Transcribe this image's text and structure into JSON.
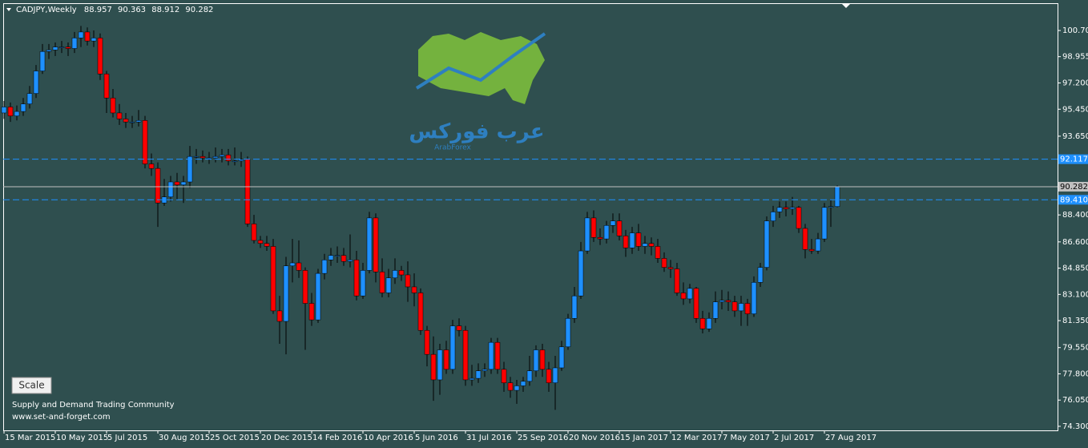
{
  "chart_data": {
    "type": "candlestick",
    "symbol": "CADJPY,Weekly",
    "up_color": "#1e90ff",
    "down_color": "#ff0000",
    "ylim": [
      74.03,
      102.52
    ],
    "yticks": [
      {
        "value": 100.7,
        "label": "100.700"
      },
      {
        "value": 98.955,
        "label": "98.955"
      },
      {
        "value": 97.2,
        "label": "97.200"
      },
      {
        "value": 95.45,
        "label": "95.450"
      },
      {
        "value": 93.65,
        "label": "93.650"
      },
      {
        "value": 88.4,
        "label": "88.400"
      },
      {
        "value": 86.6,
        "label": "86.600"
      },
      {
        "value": 84.85,
        "label": "84.850"
      },
      {
        "value": 83.1,
        "label": "83.100"
      },
      {
        "value": 81.35,
        "label": "81.350"
      },
      {
        "value": 79.55,
        "label": "79.550"
      },
      {
        "value": 77.8,
        "label": "77.800"
      },
      {
        "value": 76.05,
        "label": "76.050"
      },
      {
        "value": 74.3,
        "label": "74.300"
      }
    ],
    "hlines": [
      {
        "value": 92.117
      },
      {
        "value": 89.41,
        "label": "89.410"
      }
    ],
    "categories": [
      "15 Mar 2015",
      null,
      null,
      null,
      null,
      null,
      null,
      null,
      "10 May 2015",
      null,
      null,
      null,
      null,
      null,
      null,
      null,
      "5 Jul 2015",
      null,
      null,
      null,
      null,
      null,
      null,
      null,
      "30 Aug 2015",
      null,
      null,
      null,
      null,
      null,
      null,
      null,
      "25 Oct 2015",
      null,
      null,
      null,
      null,
      null,
      null,
      null,
      "20 Dec 2015",
      null,
      null,
      null,
      null,
      null,
      null,
      null,
      "14 Feb 2016",
      null,
      null,
      null,
      null,
      null,
      null,
      null,
      "10 Apr 2016",
      null,
      null,
      null,
      null,
      null,
      null,
      null,
      "5 Jun 2016",
      null,
      null,
      null,
      null,
      null,
      null,
      null,
      "31 Jul 2016",
      null,
      null,
      null,
      null,
      null,
      null,
      null,
      "25 Sep 2016",
      null,
      null,
      null,
      null,
      null,
      null,
      null,
      "20 Nov 2016",
      null,
      null,
      null,
      null,
      null,
      null,
      null,
      "15 Jan 2017",
      null,
      null,
      null,
      null,
      null,
      null,
      null,
      "12 Mar 2017",
      null,
      null,
      null,
      null,
      null,
      null,
      null,
      "7 May 2017",
      null,
      null,
      null,
      null,
      null,
      null,
      null,
      "2 Jul 2017",
      null,
      null,
      null,
      null,
      null,
      null,
      null,
      "27 Aug 2017",
      null,
      null
    ],
    "ohlc": [
      [
        95.2,
        96.0,
        94.8,
        95.6
      ],
      [
        95.6,
        95.9,
        94.6,
        95.0
      ],
      [
        95.0,
        95.7,
        94.7,
        95.3
      ],
      [
        95.3,
        96.2,
        95.0,
        95.8
      ],
      [
        95.8,
        97.0,
        95.5,
        96.5
      ],
      [
        96.5,
        98.4,
        96.2,
        98.0
      ],
      [
        98.0,
        99.8,
        97.8,
        99.3
      ],
      [
        99.3,
        99.8,
        98.8,
        99.4
      ],
      [
        99.4,
        99.9,
        99.0,
        99.6
      ],
      [
        99.6,
        100.0,
        99.2,
        99.6
      ],
      [
        99.6,
        99.9,
        99.0,
        99.5
      ],
      [
        99.5,
        100.6,
        99.2,
        100.2
      ],
      [
        100.2,
        101.0,
        99.6,
        100.6
      ],
      [
        100.6,
        100.9,
        99.7,
        100.0
      ],
      [
        100.0,
        100.7,
        99.6,
        100.2
      ],
      [
        100.2,
        100.5,
        97.4,
        97.8
      ],
      [
        97.8,
        98.0,
        95.2,
        96.2
      ],
      [
        96.2,
        96.8,
        94.9,
        95.2
      ],
      [
        95.2,
        95.8,
        94.4,
        94.8
      ],
      [
        94.8,
        95.2,
        94.2,
        94.6
      ],
      [
        94.6,
        95.0,
        94.2,
        94.6
      ],
      [
        94.6,
        95.4,
        94.3,
        94.7
      ],
      [
        94.7,
        95.0,
        91.5,
        91.8
      ],
      [
        91.8,
        92.5,
        91.0,
        91.5
      ],
      [
        91.5,
        91.9,
        87.6,
        89.2
      ],
      [
        89.2,
        90.8,
        89.0,
        89.6
      ],
      [
        89.6,
        91.0,
        89.3,
        90.6
      ],
      [
        90.6,
        91.2,
        89.4,
        90.4
      ],
      [
        90.4,
        91.0,
        89.2,
        90.6
      ],
      [
        90.6,
        93.0,
        90.2,
        92.3
      ],
      [
        92.3,
        92.8,
        91.8,
        92.3
      ],
      [
        92.3,
        92.7,
        91.9,
        92.2
      ],
      [
        92.2,
        92.6,
        91.8,
        92.2
      ],
      [
        92.2,
        92.9,
        91.9,
        92.3
      ],
      [
        92.3,
        92.8,
        91.9,
        92.4
      ],
      [
        92.4,
        92.8,
        91.7,
        92.0
      ],
      [
        92.0,
        92.9,
        91.7,
        92.0
      ],
      [
        92.0,
        92.6,
        91.6,
        92.1
      ],
      [
        92.1,
        92.3,
        87.6,
        87.8
      ],
      [
        87.8,
        88.4,
        86.5,
        86.7
      ],
      [
        86.7,
        87.0,
        86.2,
        86.5
      ],
      [
        86.5,
        87.0,
        86.0,
        86.3
      ],
      [
        86.3,
        86.8,
        81.8,
        82.0
      ],
      [
        82.0,
        83.0,
        79.8,
        81.3
      ],
      [
        81.3,
        85.6,
        79.1,
        85.0
      ],
      [
        85.0,
        86.8,
        83.9,
        85.2
      ],
      [
        85.2,
        86.7,
        84.2,
        84.7
      ],
      [
        84.7,
        84.9,
        79.4,
        82.5
      ],
      [
        82.5,
        83.2,
        81.0,
        81.4
      ],
      [
        81.4,
        84.8,
        81.2,
        84.5
      ],
      [
        84.5,
        85.8,
        84.1,
        85.4
      ],
      [
        85.4,
        86.2,
        85.0,
        85.7
      ],
      [
        85.7,
        86.3,
        85.2,
        85.7
      ],
      [
        85.7,
        86.2,
        85.0,
        85.3
      ],
      [
        85.3,
        87.1,
        84.9,
        85.4
      ],
      [
        85.4,
        86.0,
        82.7,
        83.0
      ],
      [
        83.0,
        85.2,
        82.8,
        84.7
      ],
      [
        84.7,
        88.6,
        84.5,
        88.2
      ],
      [
        88.2,
        88.5,
        83.9,
        84.6
      ],
      [
        84.6,
        85.5,
        82.9,
        83.2
      ],
      [
        83.2,
        84.8,
        82.9,
        84.2
      ],
      [
        84.2,
        85.5,
        83.8,
        84.7
      ],
      [
        84.7,
        85.0,
        84.0,
        84.4
      ],
      [
        84.4,
        85.3,
        82.6,
        83.6
      ],
      [
        83.6,
        84.5,
        82.3,
        83.2
      ],
      [
        83.2,
        83.5,
        80.4,
        80.7
      ],
      [
        80.7,
        81.0,
        78.3,
        79.1
      ],
      [
        79.1,
        80.3,
        76.0,
        77.4
      ],
      [
        77.4,
        79.8,
        76.4,
        79.4
      ],
      [
        79.4,
        80.0,
        77.8,
        78.1
      ],
      [
        78.1,
        81.4,
        77.8,
        81.0
      ],
      [
        81.0,
        81.5,
        80.3,
        80.7
      ],
      [
        80.7,
        81.0,
        77.0,
        77.4
      ],
      [
        77.4,
        78.4,
        77.0,
        77.5
      ],
      [
        77.5,
        78.5,
        77.2,
        78.0
      ],
      [
        78.0,
        78.5,
        77.6,
        78.1
      ],
      [
        78.1,
        80.2,
        77.8,
        79.9
      ],
      [
        79.9,
        80.2,
        77.8,
        78.1
      ],
      [
        78.1,
        78.6,
        76.6,
        77.2
      ],
      [
        77.2,
        77.6,
        76.2,
        76.7
      ],
      [
        76.7,
        77.4,
        75.8,
        77.0
      ],
      [
        77.0,
        77.6,
        76.6,
        77.3
      ],
      [
        77.3,
        79.0,
        77.0,
        78.0
      ],
      [
        78.0,
        79.7,
        77.6,
        79.4
      ],
      [
        79.4,
        79.8,
        77.6,
        78.1
      ],
      [
        78.1,
        78.6,
        76.6,
        77.2
      ],
      [
        77.2,
        79.0,
        75.4,
        78.2
      ],
      [
        78.2,
        80.0,
        78.0,
        79.6
      ],
      [
        79.6,
        81.8,
        79.4,
        81.5
      ],
      [
        81.5,
        83.6,
        81.2,
        83.0
      ],
      [
        83.0,
        86.6,
        82.8,
        86.0
      ],
      [
        86.0,
        88.6,
        85.8,
        88.2
      ],
      [
        88.2,
        88.7,
        86.6,
        86.9
      ],
      [
        86.9,
        87.5,
        86.4,
        86.8
      ],
      [
        86.8,
        88.0,
        86.5,
        87.7
      ],
      [
        87.7,
        88.5,
        87.2,
        88.0
      ],
      [
        88.0,
        88.5,
        86.7,
        87.0
      ],
      [
        87.0,
        87.4,
        85.6,
        86.2
      ],
      [
        86.2,
        87.6,
        85.8,
        87.2
      ],
      [
        87.2,
        87.8,
        86.0,
        86.3
      ],
      [
        86.3,
        87.0,
        85.8,
        86.5
      ],
      [
        86.5,
        86.9,
        85.7,
        86.3
      ],
      [
        86.3,
        86.8,
        85.2,
        85.5
      ],
      [
        85.5,
        85.9,
        84.6,
        84.9
      ],
      [
        84.9,
        85.4,
        84.2,
        84.8
      ],
      [
        84.8,
        85.2,
        83.0,
        83.2
      ],
      [
        83.2,
        83.9,
        82.4,
        82.8
      ],
      [
        82.8,
        83.8,
        82.5,
        83.5
      ],
      [
        83.5,
        83.6,
        81.2,
        81.5
      ],
      [
        81.5,
        82.0,
        80.5,
        80.8
      ],
      [
        80.8,
        81.9,
        80.6,
        81.5
      ],
      [
        81.5,
        83.3,
        81.2,
        82.6
      ],
      [
        82.6,
        83.4,
        82.1,
        82.7
      ],
      [
        82.7,
        83.3,
        82.0,
        82.6
      ],
      [
        82.6,
        83.0,
        81.6,
        82.0
      ],
      [
        82.0,
        83.0,
        81.0,
        82.5
      ],
      [
        82.5,
        82.8,
        81.0,
        81.8
      ],
      [
        81.8,
        84.3,
        81.6,
        83.9
      ],
      [
        83.9,
        85.2,
        83.6,
        84.9
      ],
      [
        84.9,
        88.3,
        84.7,
        88.0
      ],
      [
        88.0,
        89.0,
        87.6,
        88.6
      ],
      [
        88.6,
        89.3,
        88.2,
        88.9
      ],
      [
        88.9,
        89.3,
        88.3,
        88.8
      ],
      [
        88.8,
        89.6,
        88.4,
        88.9
      ],
      [
        88.9,
        89.0,
        87.2,
        87.5
      ],
      [
        87.5,
        87.8,
        85.5,
        86.1
      ],
      [
        86.1,
        86.8,
        85.8,
        86.0
      ],
      [
        86.0,
        87.2,
        85.8,
        86.8
      ],
      [
        86.8,
        89.2,
        86.6,
        88.9
      ],
      [
        88.9,
        89.4,
        87.6,
        88.957
      ],
      [
        88.957,
        90.363,
        88.912,
        90.282
      ]
    ],
    "button": "Scale",
    "footer": [
      "Supply and Demand Trading Community",
      "www.set-and-forget.com"
    ],
    "logo": {
      "text": "عرب فوركس",
      "subtitle": "ArabForex"
    }
  }
}
